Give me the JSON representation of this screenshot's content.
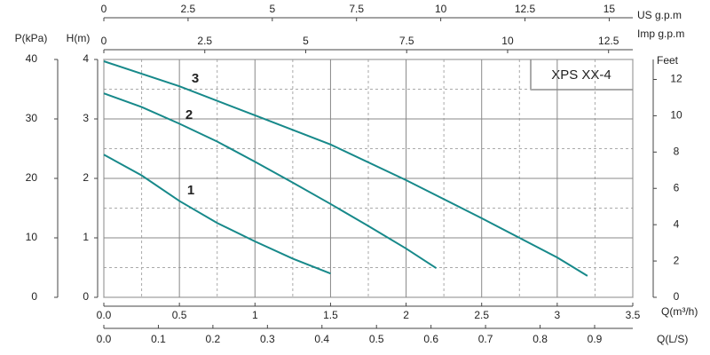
{
  "chart_data": {
    "type": "line",
    "title": "XPS XX-4",
    "x_label": "Q(m³/h)",
    "y_label": "H(m)",
    "xlim": [
      0,
      3.5
    ],
    "xticks": [
      {
        "value": 0,
        "label": "0.0"
      },
      0.5,
      1,
      1.5,
      2,
      2.5,
      3,
      3.5
    ],
    "ylim": [
      0,
      4
    ],
    "yticks": [
      0,
      1,
      2,
      3,
      4
    ],
    "minor_xticks": [
      0.25,
      0.75,
      1.25,
      1.75,
      2.25,
      2.75,
      3.25
    ],
    "minor_yticks": [
      0.5,
      1.5,
      2.5,
      3.5
    ],
    "grid": true,
    "series": [
      {
        "name": "1",
        "color": "#17898a",
        "x": [
          0,
          0.25,
          0.5,
          0.75,
          1,
          1.25,
          1.5
        ],
        "values": [
          2.4,
          2.05,
          1.62,
          1.25,
          0.94,
          0.65,
          0.4
        ]
      },
      {
        "name": "2",
        "color": "#17898a",
        "x": [
          0,
          0.25,
          0.5,
          0.75,
          1,
          1.25,
          1.5,
          1.75,
          2,
          2.2
        ],
        "values": [
          3.43,
          3.2,
          2.92,
          2.62,
          2.28,
          1.93,
          1.57,
          1.2,
          0.82,
          0.49
        ]
      },
      {
        "name": "3",
        "color": "#17898a",
        "x": [
          0,
          0.5,
          1,
          1.5,
          2,
          2.5,
          3,
          3.2
        ],
        "values": [
          3.97,
          3.55,
          3.06,
          2.57,
          1.97,
          1.33,
          0.67,
          0.36
        ]
      }
    ],
    "secondary_axes": [
      {
        "label": "US  g.p.m",
        "position": "top",
        "lim": [
          0,
          15.7
        ],
        "ticks": [
          0,
          2.5,
          5,
          7.5,
          10,
          12.5,
          15
        ]
      },
      {
        "label": "Imp  g.p.m",
        "position": "top2",
        "lim": [
          0,
          13.1
        ],
        "ticks": [
          0,
          2.5,
          5,
          7.5,
          10,
          12.5
        ]
      },
      {
        "label": "Q(L/S)",
        "position": "bottom2",
        "lim": [
          0,
          0.97
        ],
        "ticks": [
          {
            "value": 0,
            "label": "0.0"
          },
          0.1,
          0.2,
          0.3,
          0.4,
          0.5,
          0.6,
          0.7,
          0.8,
          0.9
        ]
      },
      {
        "label": "P(kPa)",
        "position": "left2",
        "lim": [
          0,
          40
        ],
        "ticks": [
          0,
          10,
          20,
          30,
          40
        ]
      },
      {
        "label": "Feet",
        "position": "right",
        "lim": [
          0,
          13.1
        ],
        "ticks": [
          0,
          2,
          4,
          6,
          8,
          10,
          12
        ]
      }
    ]
  }
}
